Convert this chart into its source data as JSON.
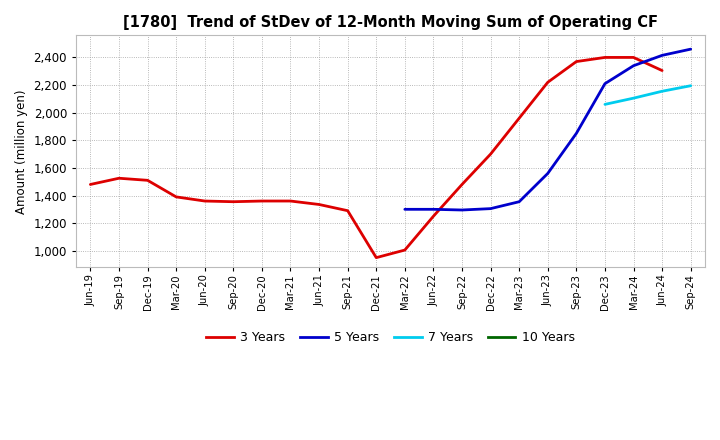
{
  "title": "[1780]  Trend of StDev of 12-Month Moving Sum of Operating CF",
  "ylabel": "Amount (million yen)",
  "background_color": "#ffffff",
  "ylim": [
    880,
    2560
  ],
  "yticks": [
    1000,
    1200,
    1400,
    1600,
    1800,
    2000,
    2200,
    2400
  ],
  "x_labels": [
    "Jun-19",
    "Sep-19",
    "Dec-19",
    "Mar-20",
    "Jun-20",
    "Sep-20",
    "Dec-20",
    "Mar-21",
    "Jun-21",
    "Sep-21",
    "Dec-21",
    "Mar-22",
    "Jun-22",
    "Sep-22",
    "Dec-22",
    "Mar-23",
    "Jun-23",
    "Sep-23",
    "Dec-23",
    "Mar-24",
    "Jun-24",
    "Sep-24"
  ],
  "series": [
    {
      "label": "3 Years",
      "color": "#dd0000",
      "linewidth": 2.0,
      "data": [
        1480,
        1525,
        1510,
        1390,
        1360,
        1355,
        1360,
        1360,
        1335,
        1290,
        950,
        1005,
        1250,
        1480,
        1700,
        1960,
        2220,
        2370,
        2400,
        2400,
        2305,
        null
      ]
    },
    {
      "label": "5 Years",
      "color": "#0000cc",
      "linewidth": 2.0,
      "data": [
        null,
        null,
        null,
        null,
        null,
        null,
        null,
        null,
        null,
        null,
        null,
        1300,
        1300,
        1295,
        1305,
        1355,
        1560,
        1850,
        2210,
        2340,
        2415,
        2460
      ]
    },
    {
      "label": "7 Years",
      "color": "#00ccee",
      "linewidth": 2.0,
      "data": [
        null,
        null,
        null,
        null,
        null,
        null,
        null,
        null,
        null,
        null,
        null,
        null,
        null,
        null,
        null,
        null,
        null,
        null,
        2060,
        2105,
        2155,
        2195
      ]
    },
    {
      "label": "10 Years",
      "color": "#006600",
      "linewidth": 2.0,
      "data": [
        null,
        null,
        null,
        null,
        null,
        null,
        null,
        null,
        null,
        null,
        null,
        null,
        null,
        null,
        null,
        null,
        null,
        null,
        null,
        null,
        null,
        null
      ]
    }
  ]
}
